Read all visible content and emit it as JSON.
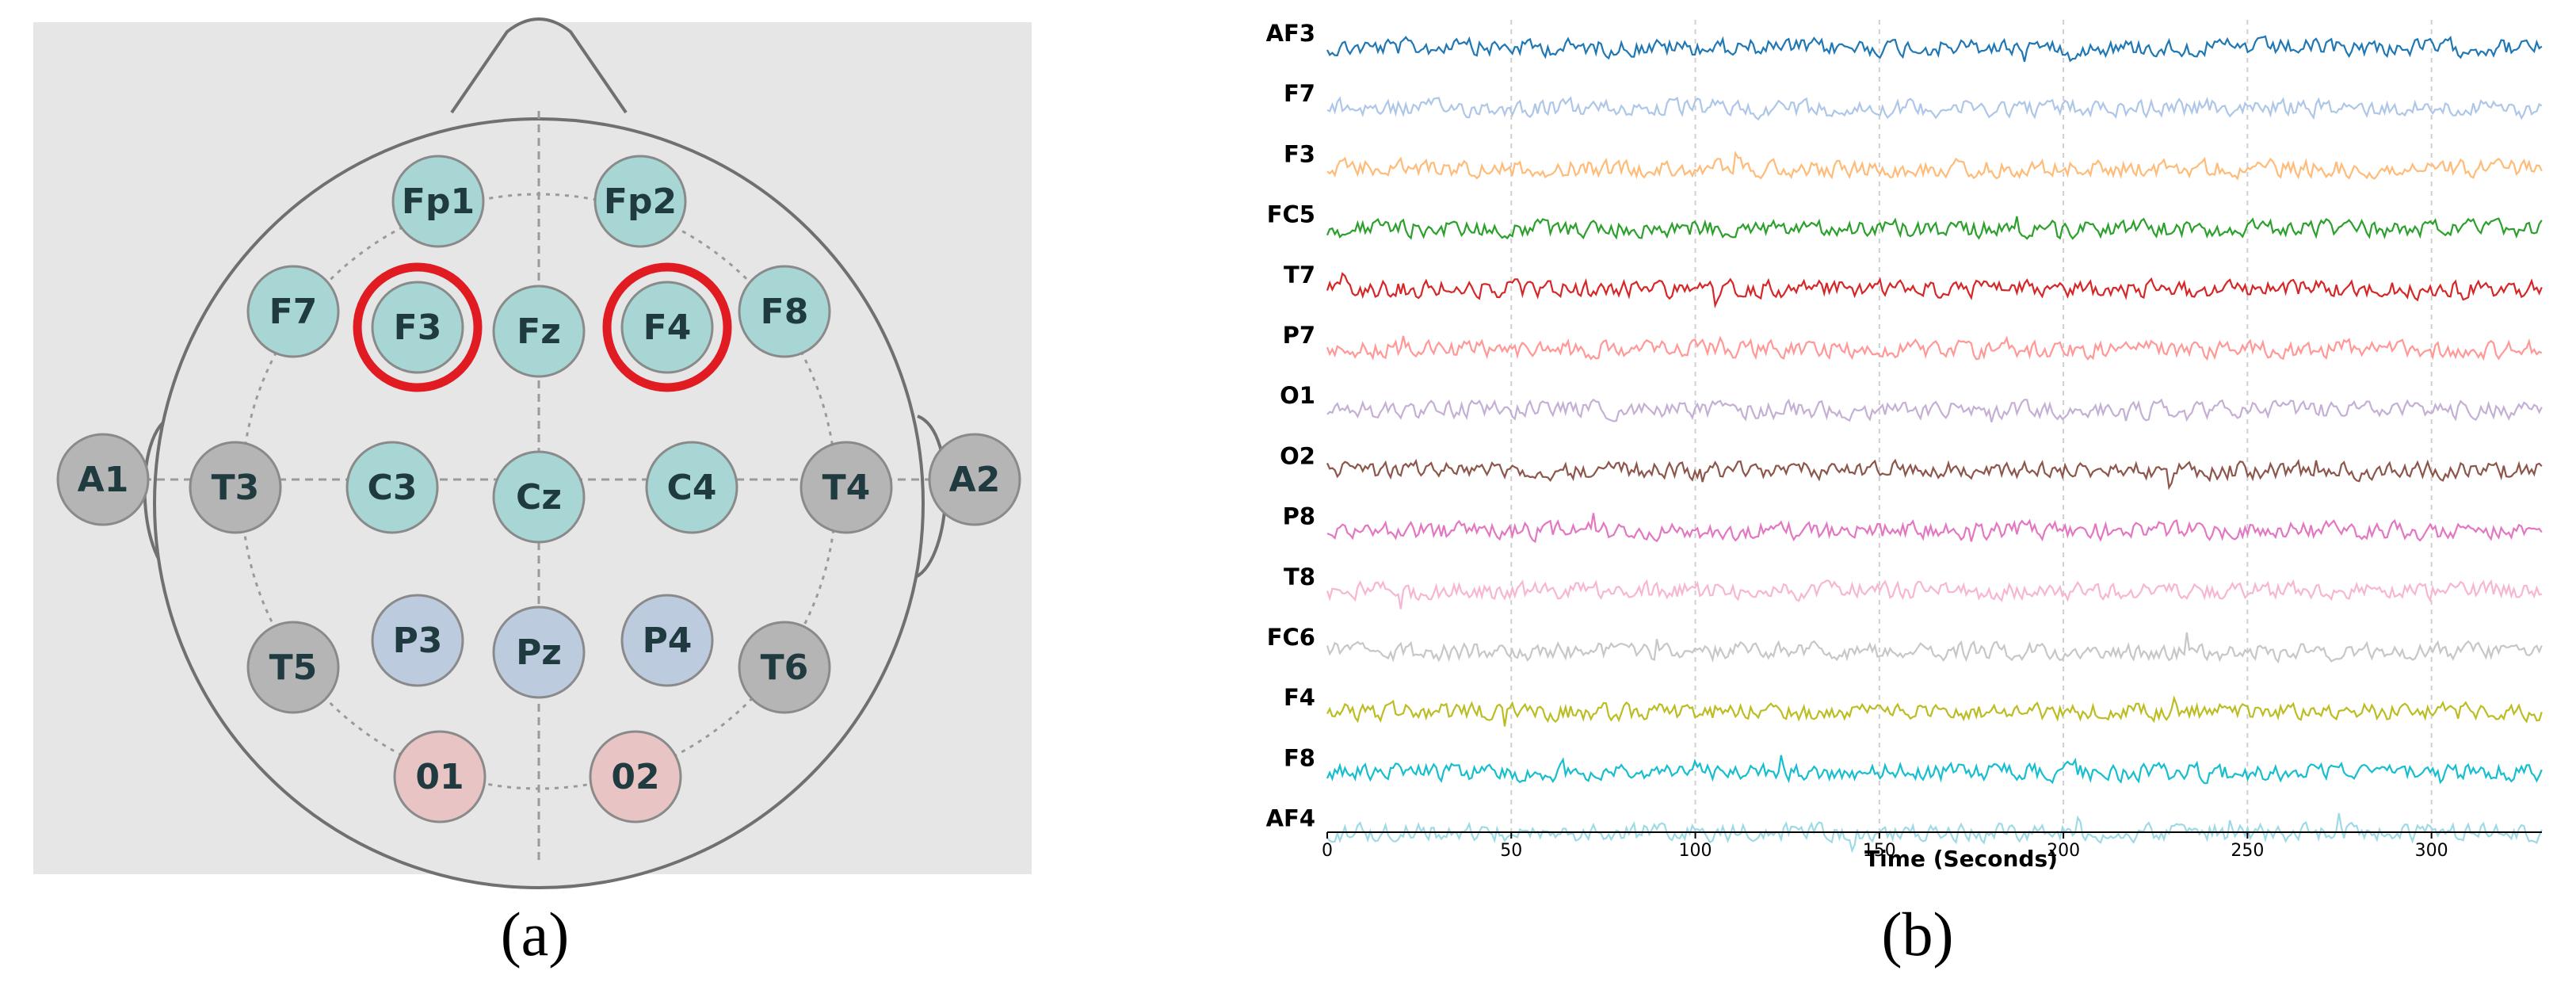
{
  "panel_a": {
    "caption": "(a)",
    "colors": {
      "background": "#e6e6e6",
      "frontal_central": "#a7d6d4",
      "parietal": "#bccbdd",
      "occipital": "#e8c4c4",
      "temporal_reference": "#b5b5b5",
      "highlight_ring": "#e11b22",
      "outline": "#707070"
    },
    "electrodes": [
      {
        "label": "Fp1",
        "group": "frontal_central"
      },
      {
        "label": "Fp2",
        "group": "frontal_central"
      },
      {
        "label": "F7",
        "group": "frontal_central"
      },
      {
        "label": "F3",
        "group": "frontal_central",
        "highlighted": true
      },
      {
        "label": "Fz",
        "group": "frontal_central"
      },
      {
        "label": "F4",
        "group": "frontal_central",
        "highlighted": true
      },
      {
        "label": "F8",
        "group": "frontal_central"
      },
      {
        "label": "A1",
        "group": "temporal_reference"
      },
      {
        "label": "T3",
        "group": "temporal_reference"
      },
      {
        "label": "C3",
        "group": "frontal_central"
      },
      {
        "label": "Cz",
        "group": "frontal_central"
      },
      {
        "label": "C4",
        "group": "frontal_central"
      },
      {
        "label": "T4",
        "group": "temporal_reference"
      },
      {
        "label": "A2",
        "group": "temporal_reference"
      },
      {
        "label": "T5",
        "group": "temporal_reference"
      },
      {
        "label": "P3",
        "group": "parietal"
      },
      {
        "label": "Pz",
        "group": "parietal"
      },
      {
        "label": "P4",
        "group": "parietal"
      },
      {
        "label": "T6",
        "group": "temporal_reference"
      },
      {
        "label": "01",
        "group": "occipital"
      },
      {
        "label": "02",
        "group": "occipital"
      }
    ]
  },
  "panel_b": {
    "caption": "(b)",
    "chart_data": {
      "type": "line",
      "xlabel": "Time (Seconds)",
      "xlim": [
        0,
        330
      ],
      "xticks": [
        0,
        50,
        100,
        150,
        200,
        250,
        300
      ],
      "grid": "vertical dashed at x ticks",
      "series": [
        {
          "name": "AF3",
          "color": "#1f77b4"
        },
        {
          "name": "F7",
          "color": "#aec7e8"
        },
        {
          "name": "F3",
          "color": "#ffbb78"
        },
        {
          "name": "FC5",
          "color": "#2ca02c"
        },
        {
          "name": "T7",
          "color": "#d62728"
        },
        {
          "name": "P7",
          "color": "#ff9896"
        },
        {
          "name": "O1",
          "color": "#c5b0d5"
        },
        {
          "name": "O2",
          "color": "#8c564b"
        },
        {
          "name": "P8",
          "color": "#e377c2"
        },
        {
          "name": "T8",
          "color": "#f7b6d2"
        },
        {
          "name": "FC6",
          "color": "#c7c7c7"
        },
        {
          "name": "F4",
          "color": "#bcbd22"
        },
        {
          "name": "F8",
          "color": "#17becf"
        },
        {
          "name": "AF4",
          "color": "#9edae5"
        }
      ]
    }
  }
}
